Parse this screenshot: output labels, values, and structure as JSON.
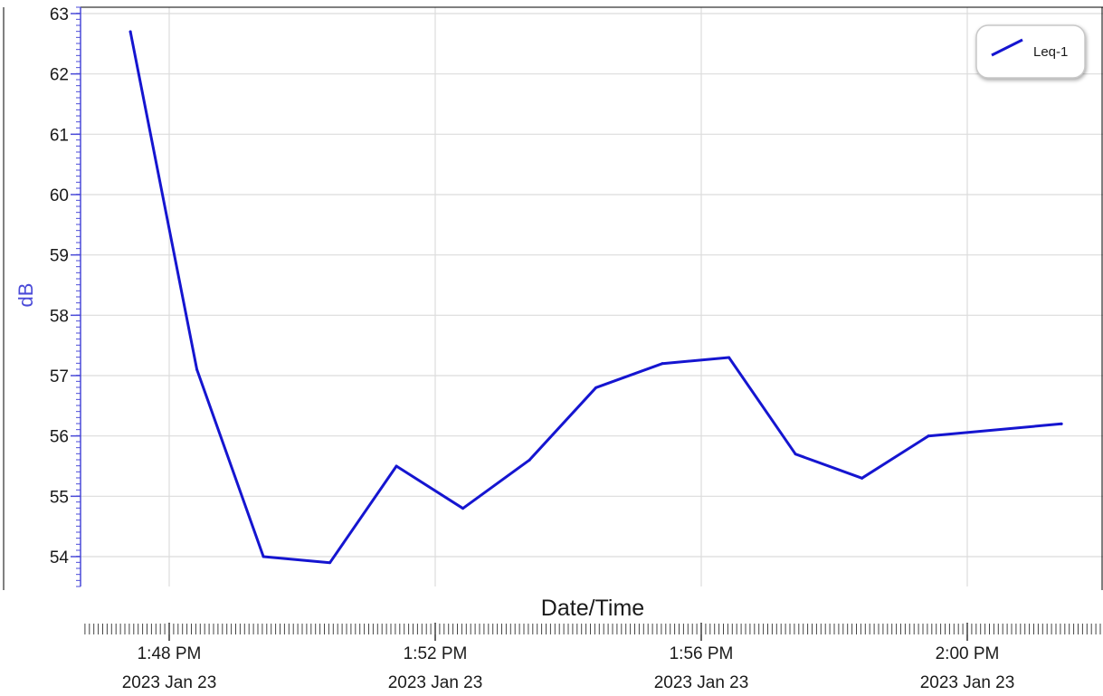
{
  "chart_data": {
    "type": "line",
    "title": "",
    "xlabel": "Date/Time",
    "ylabel": "dB",
    "ylim": [
      53.5,
      63.1
    ],
    "y_ticks": [
      54,
      55,
      56,
      57,
      58,
      59,
      60,
      61,
      62,
      63
    ],
    "x_ticks": [
      {
        "time": "1:48 PM",
        "date": "2023 Jan 23"
      },
      {
        "time": "1:52 PM",
        "date": "2023 Jan 23"
      },
      {
        "time": "1:56 PM",
        "date": "2023 Jan 23"
      },
      {
        "time": "2:00 PM",
        "date": "2023 Jan 23"
      }
    ],
    "grid": true,
    "legend_position": "top-right",
    "series": [
      {
        "name": "Leq-1",
        "color": "#1515d0",
        "x": [
          "1:47:25 PM",
          "1:48:25 PM",
          "1:49:25 PM",
          "1:50:25 PM",
          "1:51:25 PM",
          "1:52:25 PM",
          "1:53:25 PM",
          "1:54:25 PM",
          "1:55:25 PM",
          "1:56:25 PM",
          "1:57:25 PM",
          "1:58:25 PM",
          "1:59:25 PM",
          "2:01:25 PM"
        ],
        "values": [
          62.7,
          57.1,
          54.0,
          53.9,
          55.5,
          54.8,
          55.6,
          56.8,
          57.2,
          57.3,
          55.7,
          55.3,
          56.0,
          56.2
        ]
      }
    ]
  }
}
